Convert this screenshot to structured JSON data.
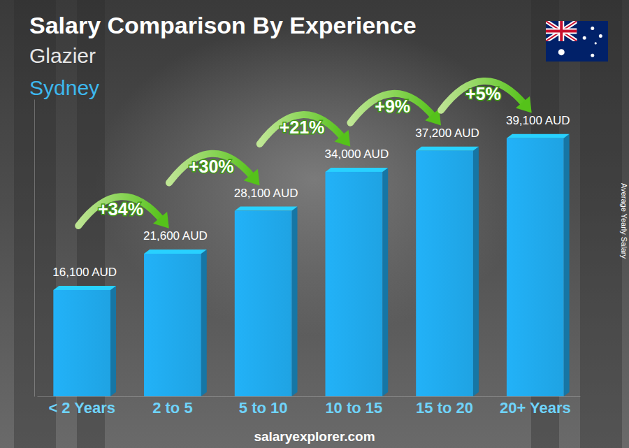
{
  "chart_data": {
    "type": "bar",
    "title": "Salary Comparison By Experience",
    "subtitle": "Glazier",
    "location": "Sydney",
    "ylabel": "Average Yearly Salary",
    "source": "salaryexplorer.com",
    "categories": [
      "< 2 Years",
      "2 to 5",
      "5 to 10",
      "10 to 15",
      "15 to 20",
      "20+ Years"
    ],
    "values": [
      16100,
      21600,
      28100,
      34000,
      37200,
      39100
    ],
    "value_labels": [
      "16,100 AUD",
      "21,600 AUD",
      "28,100 AUD",
      "34,000 AUD",
      "37,200 AUD",
      "39,100 AUD"
    ],
    "annotations": [
      "+34%",
      "+30%",
      "+21%",
      "+9%",
      "+5%"
    ],
    "color": "#1fa3e3",
    "ylim": [
      0,
      45000
    ],
    "data_labels": true,
    "tick_labels": "x",
    "grid": false
  }
}
